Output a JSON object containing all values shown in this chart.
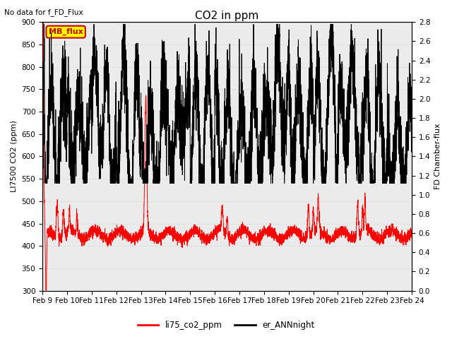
{
  "title": "CO2 in ppm",
  "note": "No data for f_FD_Flux",
  "ylabel_left": "LI7500 CO2 (ppm)",
  "ylabel_right": "FD Chamber-flux",
  "ylim_left": [
    300,
    900
  ],
  "ylim_right": [
    0.0,
    2.8
  ],
  "yticks_left": [
    300,
    350,
    400,
    450,
    500,
    550,
    600,
    650,
    700,
    750,
    800,
    850,
    900
  ],
  "yticks_right": [
    0.0,
    0.2,
    0.4,
    0.6,
    0.8,
    1.0,
    1.2,
    1.4,
    1.6,
    1.8,
    2.0,
    2.2,
    2.4,
    2.6,
    2.8
  ],
  "xticklabels": [
    "Feb 9",
    "Feb 10",
    "Feb 11",
    "Feb 12",
    "Feb 13",
    "Feb 14",
    "Feb 15",
    "Feb 16",
    "Feb 17",
    "Feb 18",
    "Feb 19",
    "Feb 20",
    "Feb 21",
    "Feb 22",
    "Feb 23",
    "Feb 24"
  ],
  "legend_entries": [
    "li75_co2_ppm",
    "er_ANNnight"
  ],
  "legend_colors": [
    "#ff0000",
    "#000000"
  ],
  "mb_flux_box_color": "#ffff00",
  "mb_flux_text_color": "#cc0000",
  "mb_flux_border_color": "#cc0000",
  "grid_color": "#e0e0e0",
  "background_color": "#ebebeb",
  "title_fontsize": 11,
  "axis_fontsize": 8,
  "tick_fontsize": 7.5
}
